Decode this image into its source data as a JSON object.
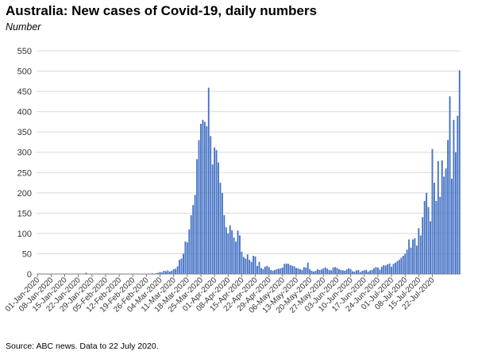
{
  "title": "Australia: New cases of Covid-19, daily numbers",
  "subtitle": "Number",
  "source": "Source: ABC news.  Data to 22 July 2020.",
  "colors": {
    "bar": "#4472c4",
    "gridline": "#d9d9d9",
    "axis": "#7f7f7f"
  },
  "chart_data": {
    "type": "bar",
    "title": "Australia: New cases of Covid-19, daily numbers",
    "ylabel": "Number",
    "ylim": [
      0,
      550
    ],
    "yticks": [
      0,
      50,
      100,
      150,
      200,
      250,
      300,
      350,
      400,
      450,
      500,
      550
    ],
    "grid": true,
    "x_start": "2020-01-01",
    "xticks": [
      "01-Jan-2020",
      "08-Jan-2020",
      "15-Jan-2020",
      "22-Jan-2020",
      "29-Jan-2020",
      "05-Feb-2020",
      "12-Feb-2020",
      "19-Feb-2020",
      "26-Feb-2020",
      "04-Mar-2020",
      "11-Mar-2020",
      "18-Mar-2020",
      "25-Mar-2020",
      "01-Apr-2020",
      "08-Apr-2020",
      "15-Apr-2020",
      "22-Apr-2020",
      "29-Apr-2020",
      "06-May-2020",
      "13-May-2020",
      "20-May-2020",
      "27-May-2020",
      "03-Jun-2020",
      "10-Jun-2020",
      "17-Jun-2020",
      "24-Jun-2020",
      "01-Jul-2020",
      "08-Jul-2020",
      "15-Jul-2020",
      "22-Jul-2020"
    ],
    "values": [
      0,
      0,
      0,
      0,
      0,
      0,
      0,
      0,
      0,
      0,
      0,
      0,
      0,
      0,
      0,
      0,
      0,
      0,
      0,
      0,
      0,
      0,
      0,
      0,
      1,
      3,
      0,
      1,
      0,
      0,
      0,
      1,
      0,
      0,
      0,
      0,
      0,
      0,
      0,
      0,
      0,
      0,
      0,
      0,
      0,
      0,
      0,
      0,
      0,
      0,
      0,
      0,
      0,
      0,
      0,
      0,
      0,
      1,
      0,
      2,
      1,
      2,
      3,
      5,
      4,
      8,
      7,
      9,
      6,
      8,
      12,
      13,
      19,
      35,
      38,
      50,
      80,
      78,
      110,
      145,
      170,
      195,
      283,
      330,
      370,
      380,
      375,
      364,
      459,
      340,
      270,
      312,
      305,
      275,
      225,
      200,
      145,
      115,
      100,
      120,
      108,
      90,
      80,
      107,
      95,
      55,
      42,
      38,
      48,
      35,
      30,
      45,
      43,
      20,
      30,
      15,
      12,
      18,
      20,
      17,
      10,
      8,
      10,
      12,
      13,
      14,
      16,
      25,
      26,
      25,
      22,
      20,
      19,
      15,
      14,
      12,
      10,
      17,
      16,
      28,
      12,
      8,
      6,
      8,
      12,
      10,
      11,
      14,
      16,
      13,
      10,
      9,
      16,
      17,
      15,
      12,
      10,
      9,
      8,
      11,
      14,
      12,
      7,
      6,
      9,
      10,
      5,
      8,
      9,
      10,
      6,
      9,
      10,
      14,
      17,
      16,
      11,
      18,
      22,
      21,
      24,
      26,
      18,
      25,
      28,
      32,
      35,
      40,
      45,
      50,
      60,
      85,
      65,
      85,
      88,
      70,
      113,
      95,
      140,
      180,
      200,
      165,
      130,
      308,
      225,
      180,
      278,
      190,
      280,
      240,
      260,
      330,
      438,
      235,
      380,
      300,
      390,
      502
    ]
  }
}
